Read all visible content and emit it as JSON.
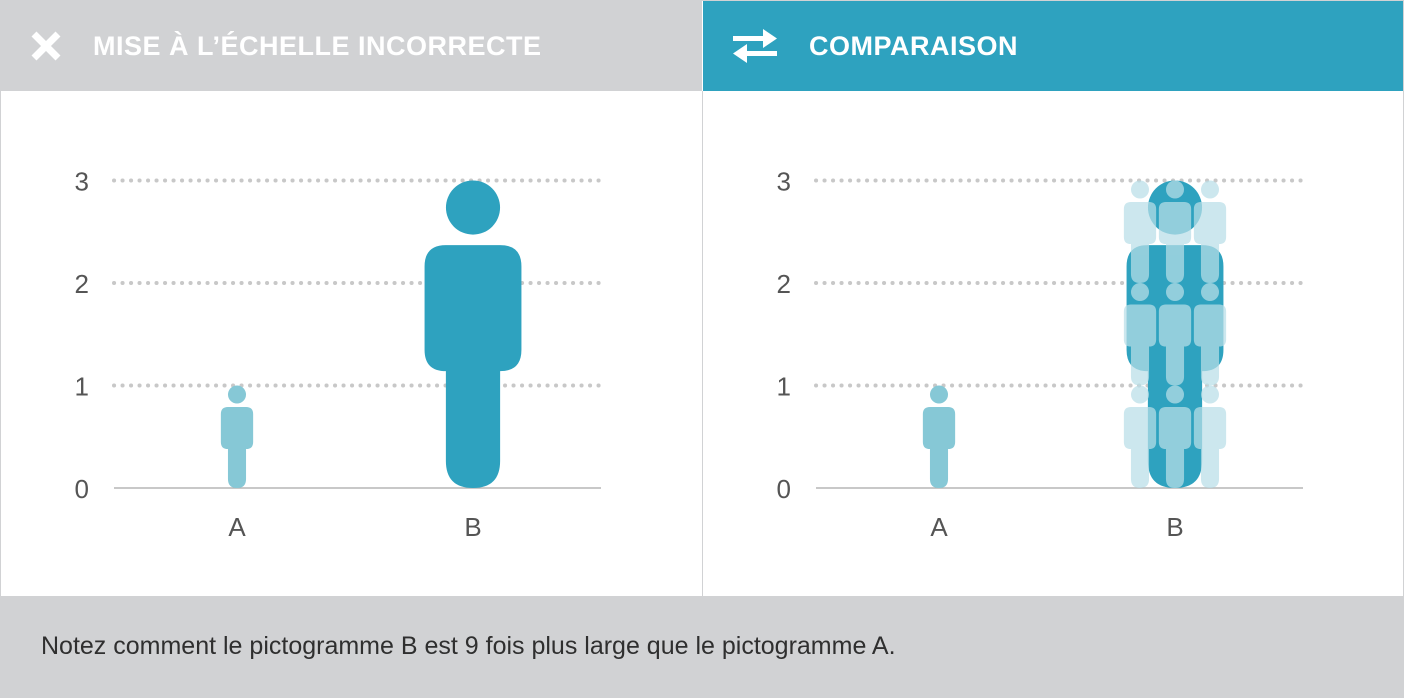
{
  "header_left": {
    "title": "MISE À L’ÉCHELLE INCORRECTE",
    "icon": "close-icon"
  },
  "header_right": {
    "title": "COMPARAISON",
    "icon": "swap-arrows-icon"
  },
  "footer": {
    "note": "Notez comment le pictogramme B est 9 fois plus large que le pictogramme A."
  },
  "colors": {
    "header_bg_left": "#d1d2d4",
    "header_bg_right": "#2ea2bf",
    "pictogram_a": "#86c8d6",
    "pictogram_b": "#2ea2bf",
    "pictogram_overlay": "#b9dfe8",
    "grid": "#c8c8c8",
    "axis_text": "#555555"
  },
  "chart_data": [
    {
      "type": "bar",
      "subtype": "pictogram",
      "categories": [
        "A",
        "B"
      ],
      "values": [
        1,
        3
      ],
      "ylim": [
        0,
        3
      ],
      "yticks": [
        0,
        1,
        2,
        3
      ],
      "grid": true
    },
    {
      "type": "bar",
      "subtype": "pictogram",
      "categories": [
        "A",
        "B"
      ],
      "values": [
        1,
        3
      ],
      "ylim": [
        0,
        3
      ],
      "yticks": [
        0,
        1,
        2,
        3
      ],
      "grid": true,
      "overlay_count": 9
    }
  ]
}
